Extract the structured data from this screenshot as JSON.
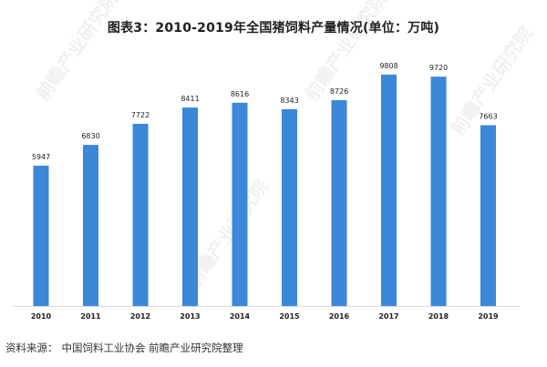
{
  "title": "图表3：2010-2019年全国猪饲料产量情况(单位：万吨)",
  "source": {
    "label": "资料来源：",
    "text": "中国饲料工业协会 前瞻产业研究院整理"
  },
  "watermark_text": "前瞻产业研究院",
  "colors": {
    "bar": "#3b87d8",
    "axis": "#d9d9d9",
    "label": "#222222"
  },
  "chart_data": {
    "type": "bar",
    "title": "图表3：2010-2019年全国猪饲料产量情况(单位：万吨)",
    "xlabel": "",
    "ylabel": "",
    "categories": [
      "2010",
      "2011",
      "2012",
      "2013",
      "2014",
      "2015",
      "2016",
      "2017",
      "2018",
      "2019"
    ],
    "values": [
      5947,
      6830,
      7722,
      8411,
      8616,
      8343,
      8726,
      9808,
      9720,
      7663
    ],
    "ylim": [
      0,
      10500
    ],
    "grid": false,
    "legend": "none",
    "data_labels": true
  }
}
